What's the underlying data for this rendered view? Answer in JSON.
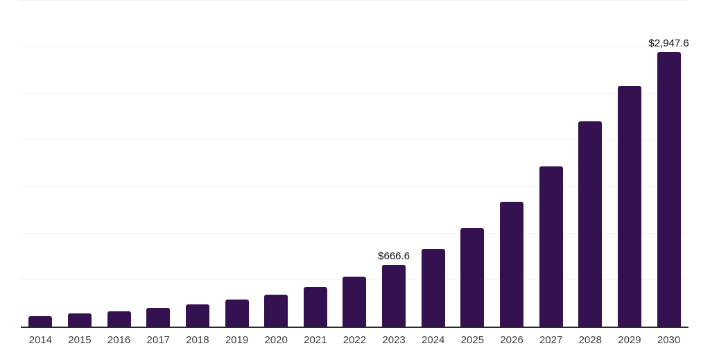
{
  "chart_data": {
    "type": "bar",
    "title": "",
    "categories": [
      "2014",
      "2015",
      "2016",
      "2017",
      "2018",
      "2019",
      "2020",
      "2021",
      "2022",
      "2023",
      "2024",
      "2025",
      "2026",
      "2027",
      "2028",
      "2029",
      "2030"
    ],
    "values": [
      115,
      138,
      161,
      203,
      240,
      287,
      344,
      426,
      538,
      666.6,
      836,
      1060,
      1343,
      1723,
      2202,
      2587,
      2947.6
    ],
    "point_labels": {
      "2023": "$666.6",
      "2030": "$2,947.6"
    },
    "y_axis": {
      "min": 0,
      "max": 3500,
      "grid_step": 500,
      "tick_labels_visible": false,
      "label": ""
    },
    "x_axis": {
      "label": ""
    },
    "grid": "horizontal",
    "legend": "none",
    "style": {
      "bar_color": "#341150",
      "gridline_color": "#f1f1f1",
      "axis_line_color": "#2b2b2b",
      "x_label_color": "#3c3c3c",
      "point_label_color": "#111111",
      "background_color": "#ffffff"
    }
  }
}
